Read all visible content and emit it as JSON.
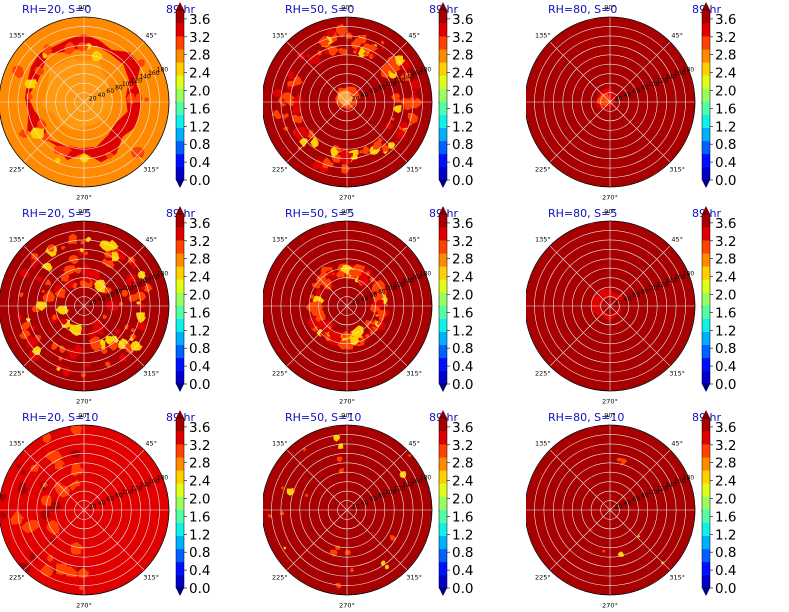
{
  "chart_data": {
    "type": "polar-contour",
    "grid": true,
    "angle_tick_labels": [
      "0°",
      "45°",
      "90°",
      "135°",
      "180°",
      "225°",
      "270°",
      "315°"
    ],
    "radial_tick_labels": [
      "20",
      "40",
      "60",
      "80",
      "100",
      "120",
      "140",
      "160",
      "180"
    ],
    "colorbar": {
      "tick_labels": [
        "0.0",
        "0.4",
        "0.8",
        "1.2",
        "1.6",
        "2.0",
        "2.4",
        "2.8",
        "3.2",
        "3.6"
      ],
      "range": [
        0.0,
        3.8
      ],
      "extend": "both",
      "colormap": [
        "#00007f",
        "#0000c8",
        "#0010ff",
        "#0060ff",
        "#00b0ff",
        "#10f0e8",
        "#50ffa8",
        "#98ff60",
        "#e0ff18",
        "#ffd000",
        "#ff8a00",
        "#ff4200",
        "#e00000",
        "#a80000",
        "#7f0000"
      ]
    },
    "panels": [
      {
        "title": "RH=20, S=0",
        "time": "89 hr"
      },
      {
        "title": "RH=50, S=0",
        "time": "89 hr"
      },
      {
        "title": "RH=80, S=0",
        "time": "89 hr"
      },
      {
        "title": "RH=20, S=5",
        "time": "89 hr"
      },
      {
        "title": "RH=50, S=5",
        "time": "89 hr"
      },
      {
        "title": "RH=80, S=5",
        "time": "89 hr"
      },
      {
        "title": "RH=20, S=10",
        "time": "89 hr"
      },
      {
        "title": "RH=50, S=10",
        "time": "89 hr"
      },
      {
        "title": "RH=80, S=10",
        "time": "89 hr"
      }
    ]
  }
}
